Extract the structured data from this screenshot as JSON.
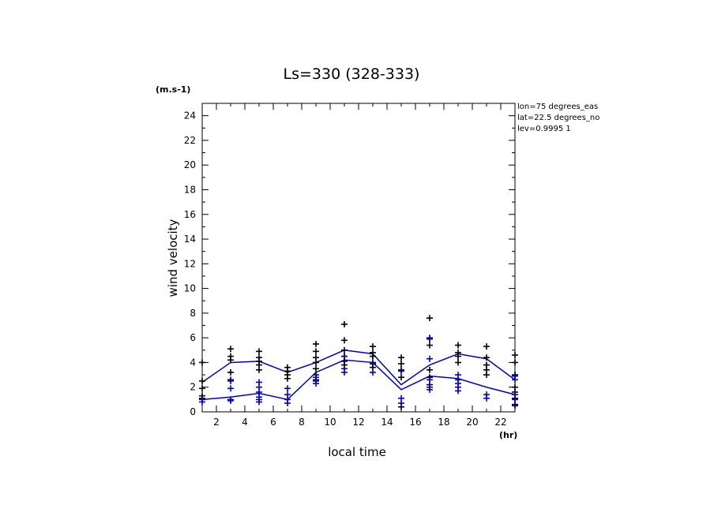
{
  "chart_data": {
    "type": "scatter",
    "title": "Ls=330 (328-333)",
    "ylabel": "wind velocity",
    "xlabel": "local time",
    "y_unit": "(m.s-1)",
    "x_unit": "(hr)",
    "info_lines": [
      "lon=75 degrees_eas",
      "lat=22.5 degrees_no",
      "lev=0.9995 1"
    ],
    "xlim": [
      1,
      23
    ],
    "ylim": [
      0,
      25
    ],
    "x_ticks": [
      2,
      4,
      6,
      8,
      10,
      12,
      14,
      16,
      18,
      20,
      22
    ],
    "y_ticks": [
      0,
      2,
      4,
      6,
      8,
      10,
      12,
      14,
      16,
      18,
      20,
      22,
      24
    ],
    "grid": false,
    "colors": {
      "black": "#000000",
      "blue": "#0000cc"
    },
    "series": [
      {
        "color": "black",
        "kind": "points",
        "points": [
          [
            1,
            4.0
          ],
          [
            1,
            2.5
          ],
          [
            1,
            1.9
          ],
          [
            1,
            1.3
          ],
          [
            1,
            1.1
          ],
          [
            3,
            5.1
          ],
          [
            3,
            4.5
          ],
          [
            3,
            4.2
          ],
          [
            3,
            3.2
          ],
          [
            3,
            2.6
          ],
          [
            5,
            4.9
          ],
          [
            5,
            4.4
          ],
          [
            5,
            4.1
          ],
          [
            5,
            3.8
          ],
          [
            5,
            3.4
          ],
          [
            7,
            3.6
          ],
          [
            7,
            3.3
          ],
          [
            7,
            3.0
          ],
          [
            7,
            2.7
          ],
          [
            9,
            5.5
          ],
          [
            9,
            4.9
          ],
          [
            9,
            4.4
          ],
          [
            9,
            4.0
          ],
          [
            9,
            3.5
          ],
          [
            9,
            3.0
          ],
          [
            9,
            2.6
          ],
          [
            11,
            7.1
          ],
          [
            11,
            5.8
          ],
          [
            11,
            5.0
          ],
          [
            11,
            4.5
          ],
          [
            11,
            4.1
          ],
          [
            11,
            3.8
          ],
          [
            13,
            5.3
          ],
          [
            13,
            4.8
          ],
          [
            13,
            4.5
          ],
          [
            13,
            3.9
          ],
          [
            13,
            3.6
          ],
          [
            15,
            4.4
          ],
          [
            15,
            3.9
          ],
          [
            15,
            3.4
          ],
          [
            15,
            2.8
          ],
          [
            15,
            0.4
          ],
          [
            17,
            7.6
          ],
          [
            17,
            5.9
          ],
          [
            17,
            5.4
          ],
          [
            17,
            3.4
          ],
          [
            17,
            2.8
          ],
          [
            17,
            2.2
          ],
          [
            19,
            5.4
          ],
          [
            19,
            4.8
          ],
          [
            19,
            4.5
          ],
          [
            19,
            4.0
          ],
          [
            21,
            5.3
          ],
          [
            21,
            4.4
          ],
          [
            21,
            3.8
          ],
          [
            21,
            3.4
          ],
          [
            21,
            3.0
          ],
          [
            23,
            4.6
          ],
          [
            23,
            4.0
          ],
          [
            23,
            3.0
          ],
          [
            23,
            2.0
          ],
          [
            23,
            1.6
          ],
          [
            23,
            1.1
          ],
          [
            23,
            0.6
          ]
        ]
      },
      {
        "color": "blue",
        "kind": "points",
        "points": [
          [
            1,
            1.0
          ],
          [
            1,
            0.8
          ],
          [
            3,
            2.5
          ],
          [
            3,
            1.9
          ],
          [
            3,
            1.0
          ],
          [
            3,
            0.9
          ],
          [
            5,
            2.4
          ],
          [
            5,
            2.0
          ],
          [
            5,
            1.6
          ],
          [
            5,
            1.2
          ],
          [
            5,
            1.0
          ],
          [
            5,
            0.8
          ],
          [
            7,
            1.9
          ],
          [
            7,
            1.4
          ],
          [
            7,
            1.0
          ],
          [
            7,
            0.7
          ],
          [
            9,
            2.8
          ],
          [
            9,
            2.5
          ],
          [
            9,
            2.3
          ],
          [
            11,
            4.5
          ],
          [
            11,
            3.5
          ],
          [
            11,
            3.2
          ],
          [
            13,
            4.0
          ],
          [
            13,
            3.2
          ],
          [
            15,
            3.3
          ],
          [
            15,
            1.1
          ],
          [
            15,
            0.7
          ],
          [
            17,
            6.0
          ],
          [
            17,
            4.3
          ],
          [
            17,
            2.6
          ],
          [
            17,
            2.0
          ],
          [
            17,
            1.8
          ],
          [
            19,
            3.0
          ],
          [
            19,
            2.6
          ],
          [
            19,
            2.3
          ],
          [
            19,
            2.0
          ],
          [
            19,
            1.7
          ],
          [
            21,
            1.4
          ],
          [
            21,
            1.1
          ],
          [
            23,
            2.9
          ],
          [
            23,
            2.6
          ],
          [
            23,
            1.4
          ],
          [
            23,
            1.0
          ],
          [
            23,
            0.5
          ]
        ]
      },
      {
        "color": "blue",
        "kind": "line",
        "x": [
          1,
          3,
          5,
          7,
          9,
          11,
          13,
          15,
          17,
          19,
          21,
          23
        ],
        "values": [
          2.4,
          4.0,
          4.1,
          3.2,
          4.0,
          5.0,
          4.7,
          2.2,
          3.8,
          4.7,
          4.3,
          2.6
        ]
      },
      {
        "color": "blue",
        "kind": "line",
        "x": [
          1,
          3,
          5,
          7,
          9,
          11,
          13,
          15,
          17,
          19,
          21,
          23
        ],
        "values": [
          1.0,
          1.2,
          1.5,
          1.0,
          3.2,
          4.2,
          4.0,
          1.8,
          2.9,
          2.7,
          2.0,
          1.4
        ]
      }
    ]
  }
}
